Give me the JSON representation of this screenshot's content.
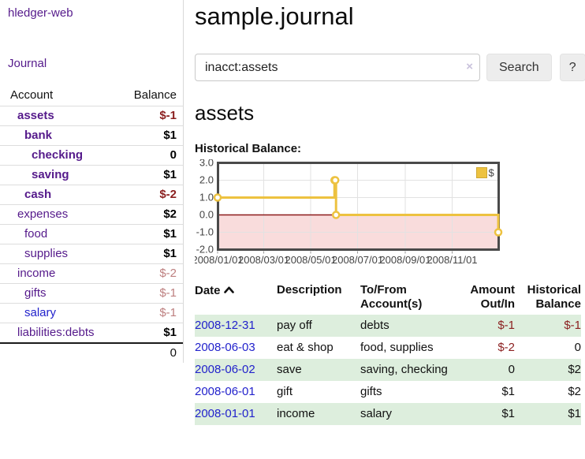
{
  "brand": "hledger-web",
  "nav": {
    "journal": "Journal"
  },
  "sidebar": {
    "account_header": "Account",
    "balance_header": "Balance",
    "accounts": [
      {
        "name": "assets",
        "balance": "$-1",
        "indent": 1,
        "bold": true,
        "negative": "strong",
        "link_color": "purple"
      },
      {
        "name": "bank",
        "balance": "$1",
        "indent": 2,
        "bold": true,
        "negative": "none",
        "link_color": "purple"
      },
      {
        "name": "checking",
        "balance": "0",
        "indent": 3,
        "bold": true,
        "negative": "none",
        "link_color": "purple"
      },
      {
        "name": "saving",
        "balance": "$1",
        "indent": 3,
        "bold": true,
        "negative": "none",
        "link_color": "purple"
      },
      {
        "name": "cash",
        "balance": "$-2",
        "indent": 2,
        "bold": true,
        "negative": "strong",
        "link_color": "purple"
      },
      {
        "name": "expenses",
        "balance": "$2",
        "indent": 1,
        "bold": false,
        "negative": "none",
        "link_color": "purple"
      },
      {
        "name": "food",
        "balance": "$1",
        "indent": 2,
        "bold": false,
        "negative": "none",
        "link_color": "purple"
      },
      {
        "name": "supplies",
        "balance": "$1",
        "indent": 2,
        "bold": false,
        "negative": "none",
        "link_color": "purple"
      },
      {
        "name": "income",
        "balance": "$-2",
        "indent": 1,
        "bold": false,
        "negative": "faded",
        "link_color": "purple"
      },
      {
        "name": "gifts",
        "balance": "$-1",
        "indent": 2,
        "bold": false,
        "negative": "faded",
        "link_color": "purple"
      },
      {
        "name": "salary",
        "balance": "$-1",
        "indent": 2,
        "bold": false,
        "negative": "faded",
        "link_color": "blue"
      },
      {
        "name": "liabilities:debts",
        "balance": "$1",
        "indent": 1,
        "bold": false,
        "negative": "none",
        "link_color": "purple"
      }
    ],
    "total": "0"
  },
  "main": {
    "title": "sample.journal",
    "search": {
      "value": "inacct:assets",
      "clear": "×",
      "search_button": "Search",
      "help_button": "?"
    },
    "heading": "assets",
    "chart_title": "Historical Balance:"
  },
  "chart_data": {
    "type": "line",
    "steps": true,
    "title": "Historical Balance:",
    "series": [
      {
        "name": "$",
        "color": "#edc240",
        "points": [
          {
            "date": "2008-01-01",
            "value": 1
          },
          {
            "date": "2008-06-01",
            "value": 2
          },
          {
            "date": "2008-06-02",
            "value": 2
          },
          {
            "date": "2008-06-03",
            "value": 0
          },
          {
            "date": "2008-12-31",
            "value": -1
          }
        ]
      }
    ],
    "x_range": [
      "2008-01-01",
      "2009-01-01"
    ],
    "ylim": [
      -2,
      3
    ],
    "yticks": [
      "3.0",
      "2.0",
      "1.0",
      "0.0",
      "-1.0",
      "-2.0"
    ],
    "xticks": [
      {
        "label": "2008/01/01",
        "date": "2008-01-01"
      },
      {
        "label": "2008/03/01",
        "date": "2008-03-01"
      },
      {
        "label": "2008/05/01",
        "date": "2008-05-01"
      },
      {
        "label": "2008/07/01",
        "date": "2008-07-01"
      },
      {
        "label": "2008/09/01",
        "date": "2008-09-01"
      },
      {
        "label": "2008/11/01",
        "date": "2008-11-01"
      }
    ],
    "legend": {
      "label": "$",
      "position": "top-right"
    },
    "colors": {
      "line": "#edc240",
      "negative_fill": "#f9dcdc",
      "zero_line": "#8b1a1a",
      "grid": "#e2e2e2",
      "border": "#4a4a4a",
      "tick_text": "#444444"
    }
  },
  "register": {
    "headers": {
      "date": "Date",
      "description": "Description",
      "accounts": "To/From Account(s)",
      "amount": "Amount Out/In",
      "balance": "Historical Balance"
    },
    "rows": [
      {
        "date": "2008-12-31",
        "description": "pay off",
        "accounts": "debts",
        "amount": "$-1",
        "balance": "$-1",
        "amount_neg": true,
        "balance_neg": true,
        "shaded": true
      },
      {
        "date": "2008-06-03",
        "description": "eat & shop",
        "accounts": "food, supplies",
        "amount": "$-2",
        "balance": "0",
        "amount_neg": true,
        "balance_neg": false,
        "shaded": false
      },
      {
        "date": "2008-06-02",
        "description": "save",
        "accounts": "saving, checking",
        "amount": "0",
        "balance": "$2",
        "amount_neg": false,
        "balance_neg": false,
        "shaded": true
      },
      {
        "date": "2008-06-01",
        "description": "gift",
        "accounts": "gifts",
        "amount": "$1",
        "balance": "$2",
        "amount_neg": false,
        "balance_neg": false,
        "shaded": false
      },
      {
        "date": "2008-01-01",
        "description": "income",
        "accounts": "salary",
        "amount": "$1",
        "balance": "$1",
        "amount_neg": false,
        "balance_neg": false,
        "shaded": true
      }
    ]
  },
  "colors": {
    "link_purple": "#551a8b",
    "link_blue": "#2222cc",
    "negative": "#8b1f1f",
    "negative_faded": "#bd7f7f",
    "row_shade": "#ddeedd",
    "accent_gold": "#edc240"
  },
  "icons": {
    "sort_ascending": "chevron-up",
    "clear_search": "×",
    "legend_marker": "gold-square"
  }
}
